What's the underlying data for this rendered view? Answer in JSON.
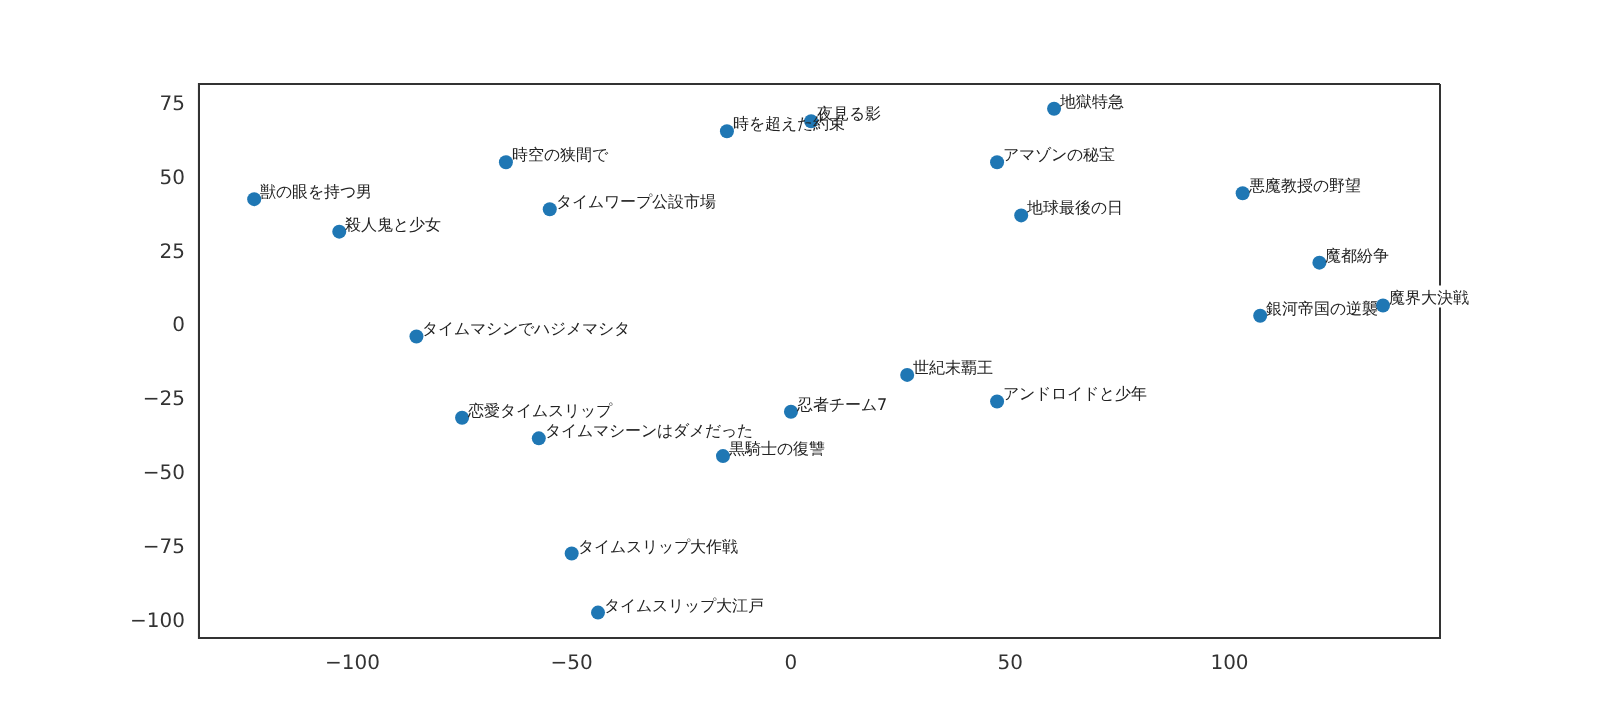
{
  "chart_data": {
    "type": "scatter",
    "marker": "circle",
    "legend": false,
    "grid": false,
    "xlim": [
      -135,
      148
    ],
    "ylim": [
      -105.6,
      82
    ],
    "xticks": [
      -100,
      -50,
      0,
      50,
      100
    ],
    "yticks": [
      -100,
      -75,
      -50,
      -25,
      0,
      25,
      50,
      75
    ],
    "series": [
      {
        "color": "#1f77b4",
        "x": [
          -122.4,
          -103,
          -65,
          -55,
          -14.6,
          4.6,
          60,
          47,
          52.5,
          103,
          120.5,
          107,
          135,
          -85.4,
          -75,
          -57.5,
          -15.5,
          0,
          26.5,
          47,
          -50,
          -44
        ],
        "values": [
          43,
          32,
          55.5,
          39.6,
          66,
          69.4,
          73.6,
          55.5,
          37.5,
          45,
          21.5,
          3.5,
          7,
          -3.5,
          -31,
          -38,
          -44,
          -29,
          -16.5,
          -25.5,
          -77,
          -97
        ]
      }
    ],
    "annotations": [
      {
        "text": "獣の眼を持つ男",
        "x": -122.4,
        "y": 43
      },
      {
        "text": "殺人鬼と少女",
        "x": -103,
        "y": 32
      },
      {
        "text": "時空の狭間で",
        "x": -65,
        "y": 55.5
      },
      {
        "text": "タイムワープ公設市場",
        "x": -55,
        "y": 39.6
      },
      {
        "text": "時を超えた約束",
        "x": -14.6,
        "y": 66
      },
      {
        "text": "夜見る影",
        "x": 4.6,
        "y": 69.4
      },
      {
        "text": "地獄特急",
        "x": 60,
        "y": 73.6
      },
      {
        "text": "アマゾンの秘宝",
        "x": 47,
        "y": 55.5
      },
      {
        "text": "地球最後の日",
        "x": 52.5,
        "y": 37.5
      },
      {
        "text": "悪魔教授の野望",
        "x": 103,
        "y": 45
      },
      {
        "text": "魔都紛争",
        "x": 120.5,
        "y": 21.5
      },
      {
        "text": "銀河帝国の逆襲",
        "x": 107,
        "y": 3.5
      },
      {
        "text": "魔界大決戦",
        "x": 135,
        "y": 7
      },
      {
        "text": "タイムマシンでハジメマシタ",
        "x": -85.4,
        "y": -3.5
      },
      {
        "text": "恋愛タイムスリップ",
        "x": -75,
        "y": -31
      },
      {
        "text": "タイムマシーンはダメだった",
        "x": -57.5,
        "y": -38
      },
      {
        "text": "黒騎士の復讐",
        "x": -15.5,
        "y": -44
      },
      {
        "text": "忍者チーム7",
        "x": 0,
        "y": -29
      },
      {
        "text": "世紀末覇王",
        "x": 26.5,
        "y": -16.5
      },
      {
        "text": "アンドロイドと少年",
        "x": 47,
        "y": -25.5
      },
      {
        "text": "タイムスリップ大作戦",
        "x": -50,
        "y": -77
      },
      {
        "text": "タイムスリップ大江戸",
        "x": -44,
        "y": -97
      }
    ]
  }
}
